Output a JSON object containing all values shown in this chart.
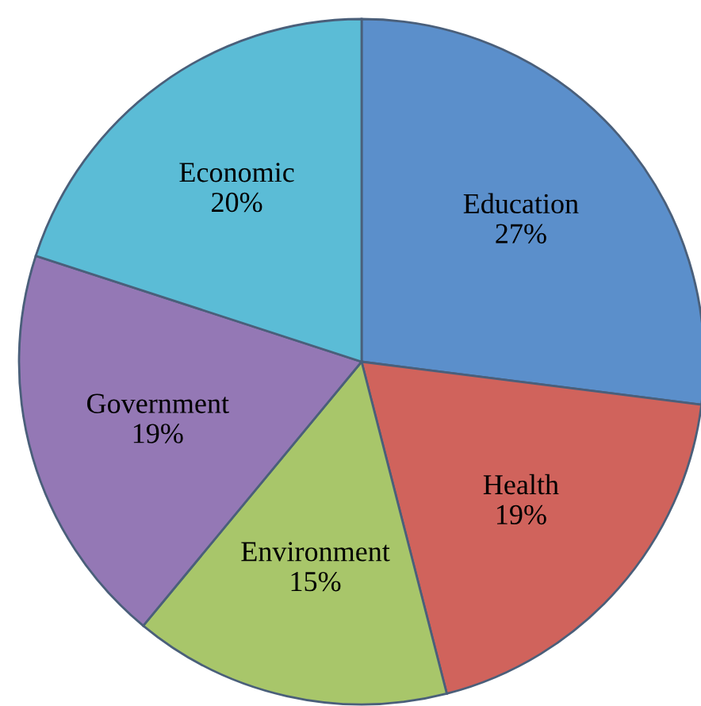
{
  "chart_data": {
    "type": "pie",
    "categories": [
      "Education",
      "Health",
      "Environment",
      "Government",
      "Economic"
    ],
    "values": [
      27,
      19,
      15,
      19,
      20
    ],
    "value_labels": [
      "27%",
      "19%",
      "15%",
      "19%",
      "20%"
    ],
    "colors": [
      "#5b8fcb",
      "#d0635c",
      "#a8c66a",
      "#9478b5",
      "#5bbcd6"
    ]
  }
}
